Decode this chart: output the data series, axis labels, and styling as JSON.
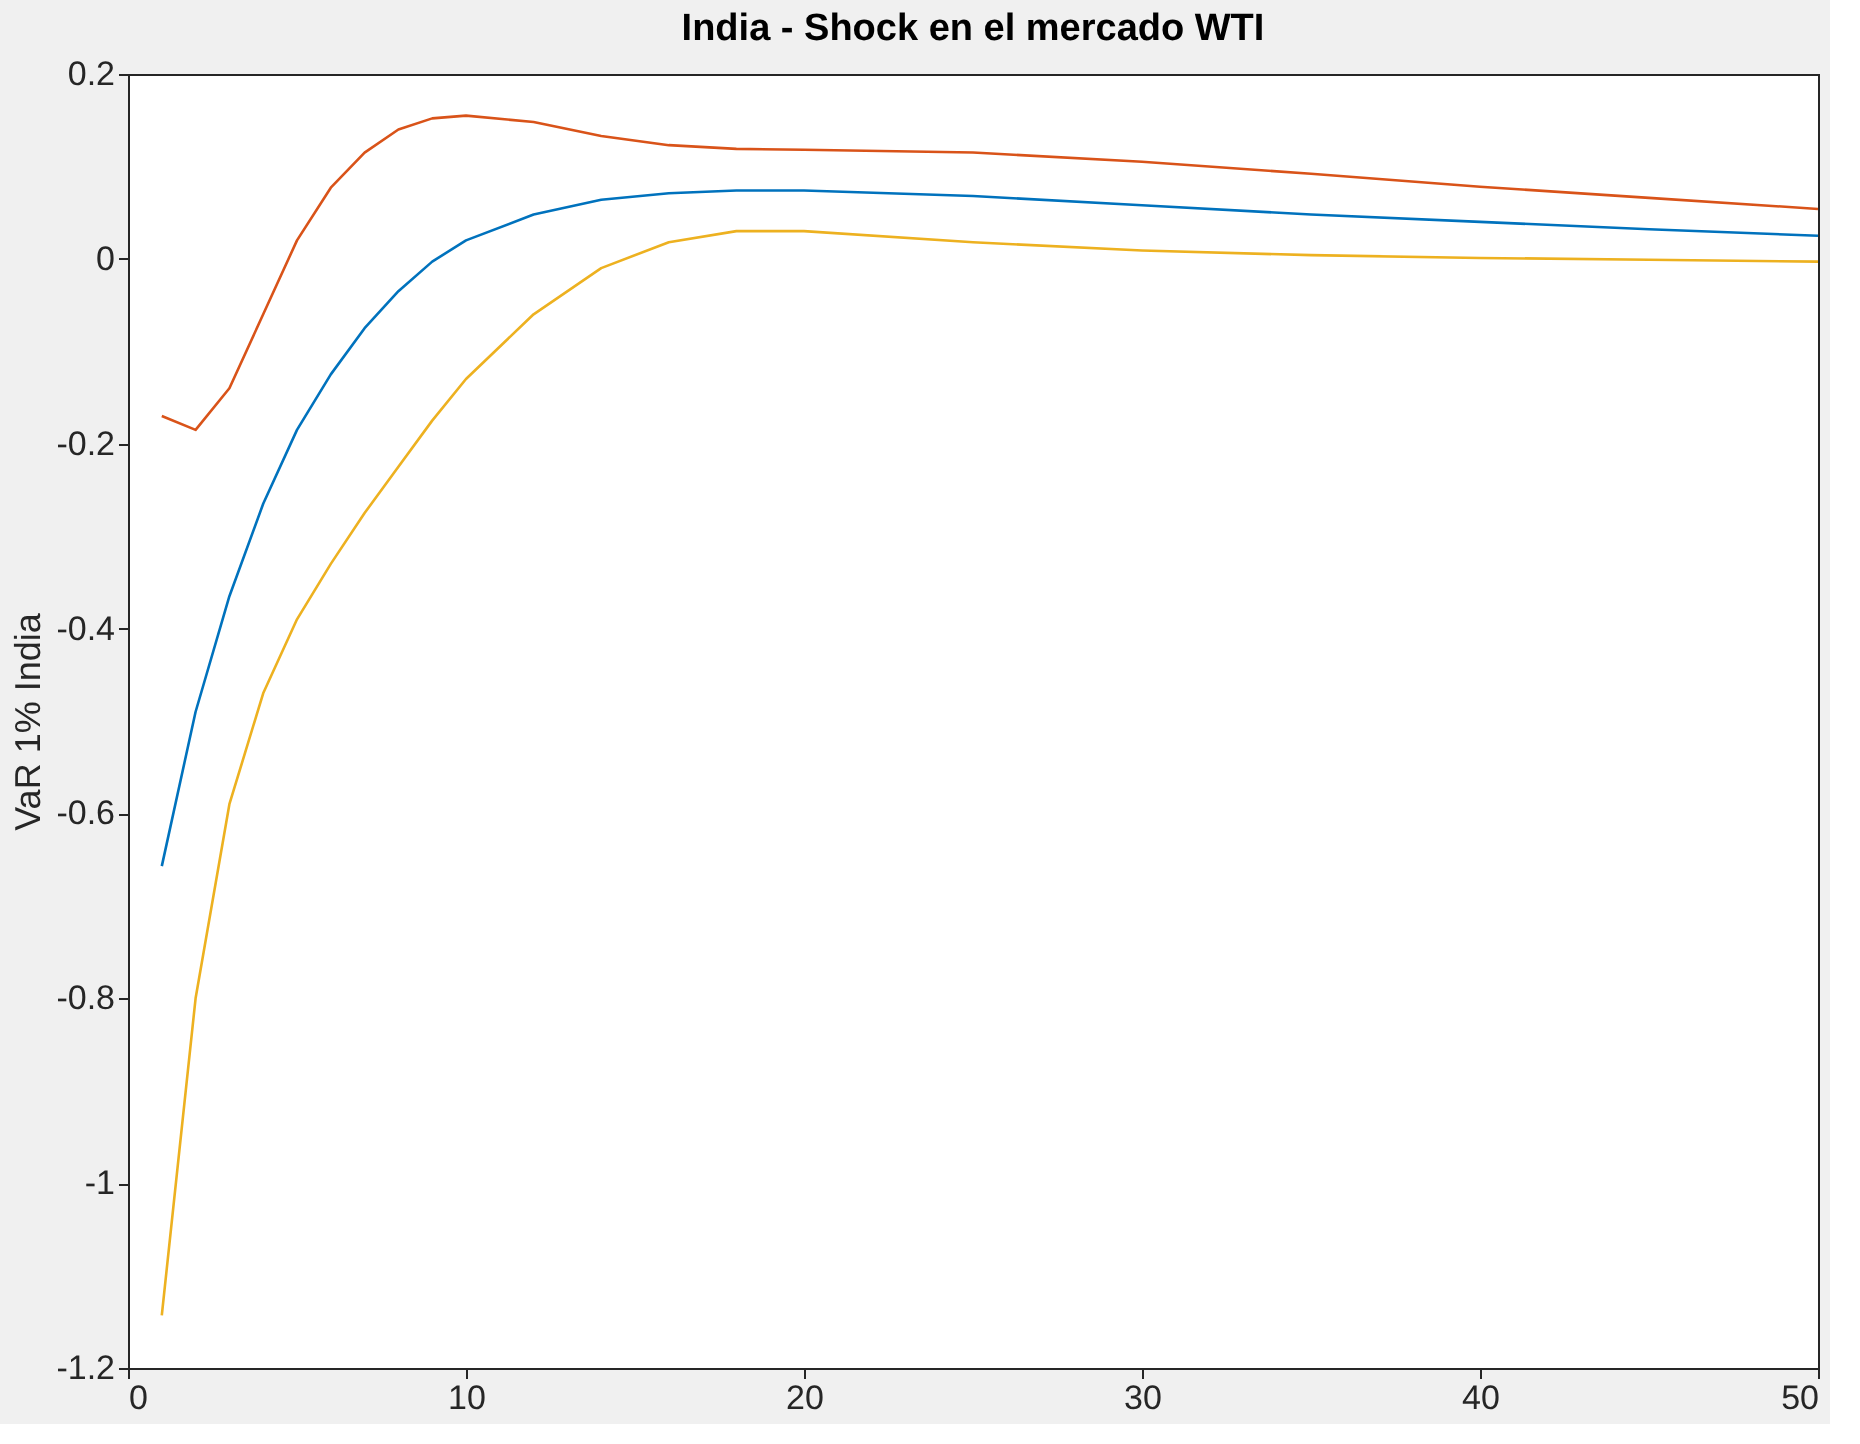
{
  "chart_data": {
    "type": "line",
    "title": "India - Shock en el mercado WTI",
    "ylabel": "VaR 1% India",
    "x": [
      1,
      2,
      3,
      4,
      5,
      6,
      7,
      8,
      9,
      10,
      12,
      14,
      16,
      18,
      20,
      25,
      30,
      35,
      40,
      45,
      50
    ],
    "series": [
      {
        "color": "#0072bd",
        "values": [
          -0.657,
          -0.49,
          -0.365,
          -0.265,
          -0.185,
          -0.125,
          -0.075,
          -0.035,
          -0.003,
          0.02,
          0.048,
          0.064,
          0.071,
          0.074,
          0.074,
          0.068,
          0.058,
          0.048,
          0.04,
          0.032,
          0.025
        ]
      },
      {
        "color": "#d95319",
        "values": [
          -0.17,
          -0.185,
          -0.14,
          -0.06,
          0.02,
          0.077,
          0.115,
          0.14,
          0.152,
          0.155,
          0.148,
          0.133,
          0.123,
          0.119,
          0.118,
          0.115,
          0.105,
          0.092,
          0.078,
          0.066,
          0.054
        ]
      },
      {
        "color": "#edb120",
        "values": [
          -1.143,
          -0.8,
          -0.59,
          -0.47,
          -0.39,
          -0.33,
          -0.275,
          -0.225,
          -0.175,
          -0.13,
          -0.06,
          -0.01,
          0.018,
          0.03,
          0.03,
          0.018,
          0.009,
          0.004,
          0.001,
          -0.001,
          -0.003
        ]
      }
    ],
    "xlim": [
      0,
      50
    ],
    "xticks": [
      0,
      10,
      20,
      30,
      40,
      50
    ],
    "ylim": [
      -1.2,
      0.2
    ],
    "yticks": [
      -1.2,
      -1,
      -0.8,
      -0.6,
      -0.4,
      -0.2,
      0,
      0.2
    ],
    "grid": false,
    "legend": false,
    "marker": "none",
    "line_style": "solid"
  }
}
